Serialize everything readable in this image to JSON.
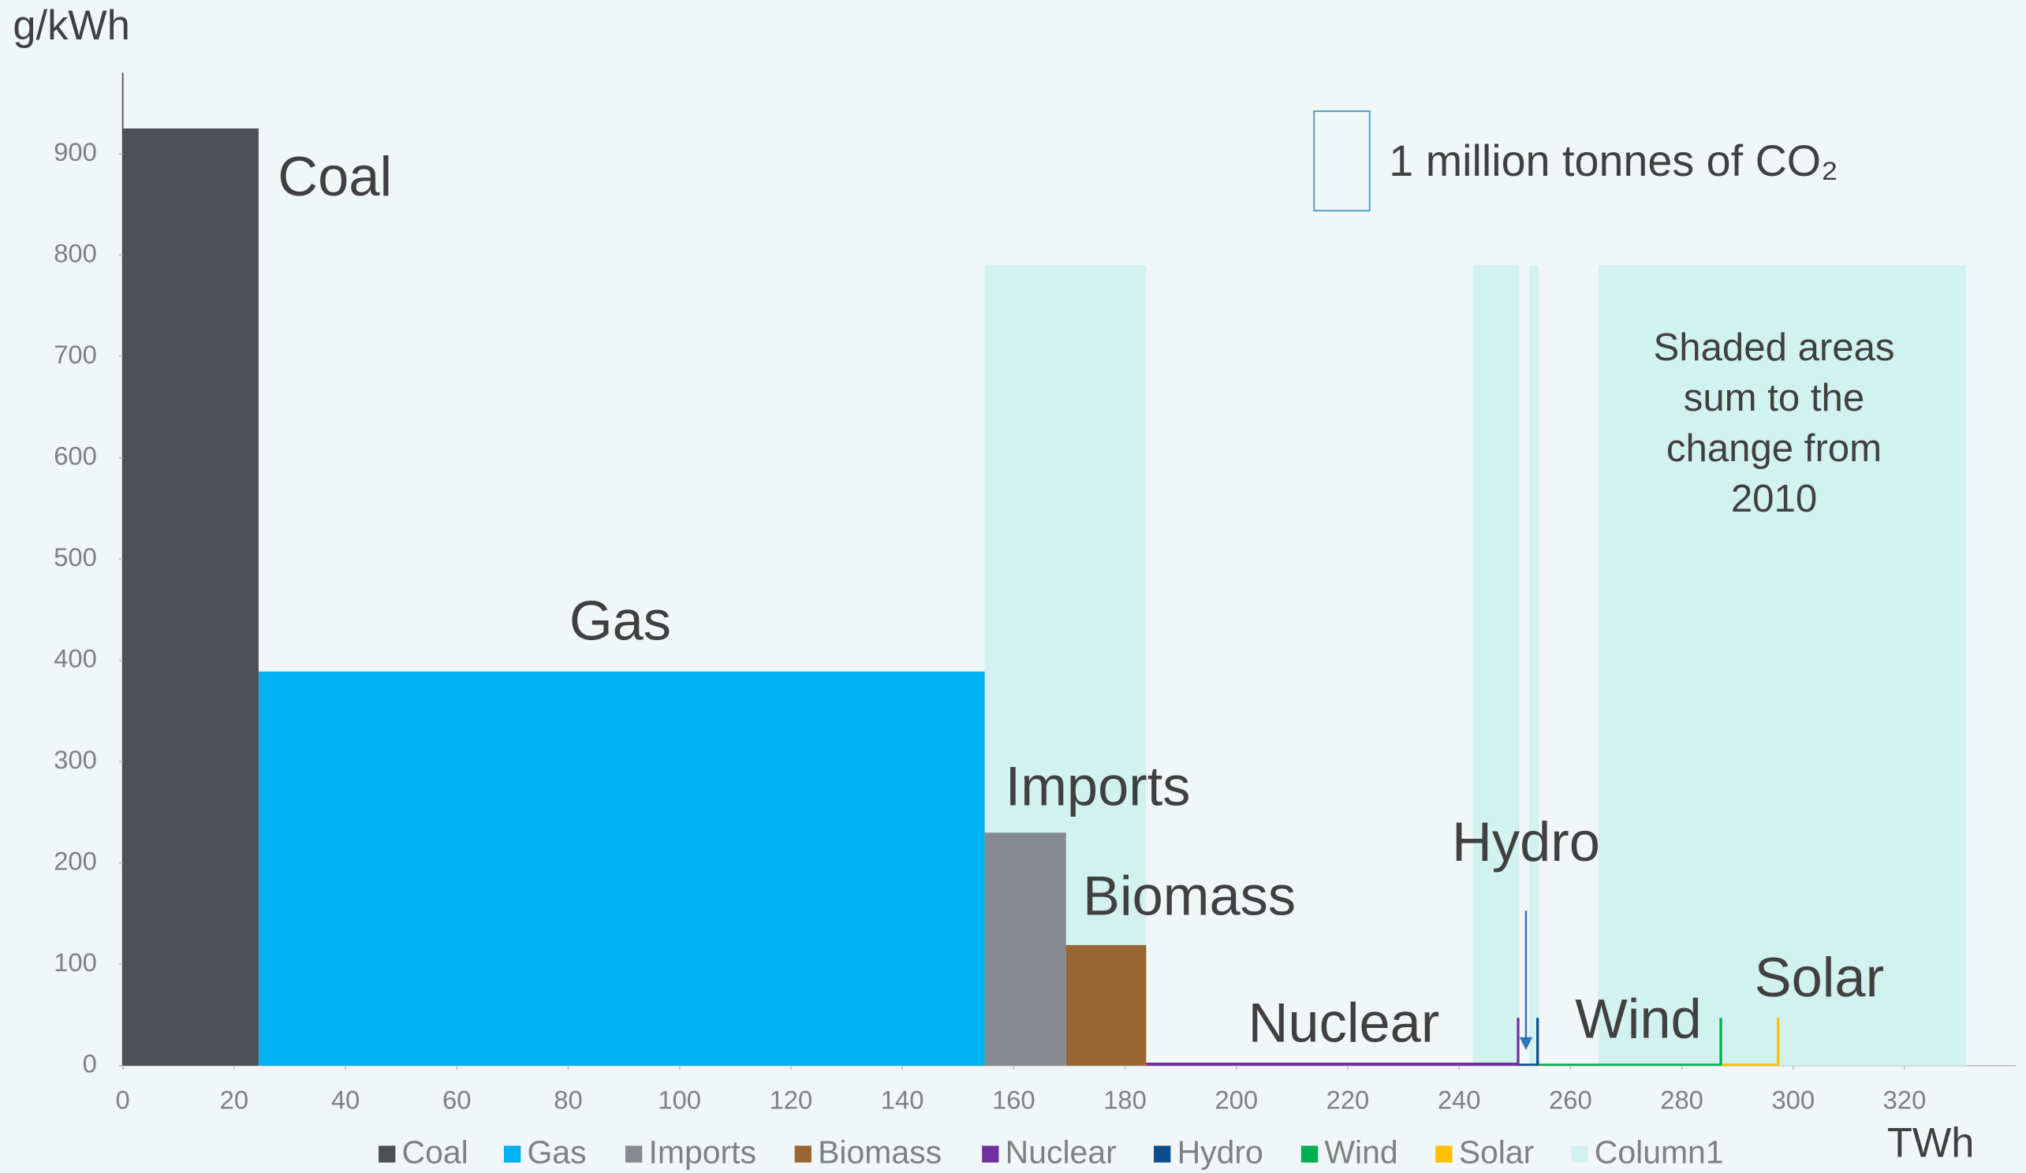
{
  "chart_data": {
    "type": "variwide",
    "y_label": "g/kWh",
    "x_label": "TWh",
    "xlim": [
      0,
      340
    ],
    "xticks": [
      0,
      20,
      40,
      60,
      80,
      100,
      120,
      140,
      160,
      180,
      200,
      220,
      240,
      260,
      280,
      300,
      320
    ],
    "ylim": [
      0,
      980
    ],
    "yticks": [
      0,
      100,
      200,
      300,
      400,
      500,
      600,
      700,
      800,
      900
    ],
    "series": [
      {
        "name": "Coal",
        "color": "#4d5057",
        "x": [
          0
        ],
        "widths": [
          24.4
        ],
        "values": [
          925
        ]
      },
      {
        "name": "Gas",
        "color": "#00b0f0",
        "x": [
          24.4
        ],
        "widths": [
          130.4
        ],
        "values": [
          389
        ]
      },
      {
        "name": "Imports",
        "color": "#868a8e",
        "x": [
          154.8
        ],
        "widths": [
          14.6
        ],
        "values": [
          230
        ]
      },
      {
        "name": "Biomass",
        "color": "#996633",
        "x": [
          169.4
        ],
        "widths": [
          14.4
        ],
        "values": [
          119
        ]
      },
      {
        "name": "Nuclear",
        "color": "#7030a0",
        "x": [
          183.8
        ],
        "widths": [
          66.8
        ],
        "values": [
          3
        ]
      },
      {
        "name": "Hydro",
        "color": "#0b4d8a",
        "x": [
          250.6
        ],
        "widths": [
          3.5
        ],
        "values": [
          2
        ]
      },
      {
        "name": "Wind",
        "color": "#00b050",
        "x": [
          254.1
        ],
        "widths": [
          32.9
        ],
        "values": [
          2
        ]
      },
      {
        "name": "Solar",
        "color": "#ffc000",
        "x": [
          287
        ],
        "widths": [
          10.3
        ],
        "values": [
          2
        ]
      },
      {
        "name": "Column1",
        "color": "#d1f2ef",
        "x": [
          154.8,
          242.5,
          252.6,
          265
        ],
        "widths": [
          29,
          8.3,
          1.7,
          66
        ],
        "values": [
          790,
          790,
          790,
          790
        ]
      }
    ],
    "key_label": "1 million tonnes of CO₂",
    "note": [
      "Shaded areas",
      "sum to the",
      "change from",
      "2010"
    ]
  }
}
